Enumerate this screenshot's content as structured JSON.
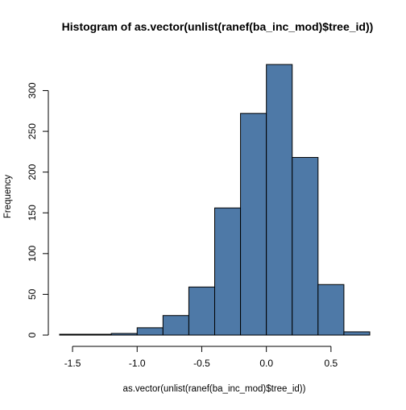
{
  "chart_data": {
    "type": "bar",
    "title": "Histogram of as.vector(unlist(ranef(ba_inc_mod)$tree_id))",
    "xlabel": "as.vector(unlist(ranef(ba_inc_mod)$tree_id))",
    "ylabel": "Frequency",
    "bin_edges": [
      -1.6,
      -1.4,
      -1.2,
      -1.0,
      -0.8,
      -0.6,
      -0.4,
      -0.2,
      0.0,
      0.2,
      0.4,
      0.6,
      0.8
    ],
    "values": [
      1,
      1,
      2,
      9,
      24,
      59,
      156,
      272,
      332,
      218,
      62,
      4
    ],
    "xlim": [
      -1.6,
      0.8
    ],
    "ylim": [
      0,
      340
    ],
    "x_ticks": [
      -1.5,
      -1.0,
      -0.5,
      0.0,
      0.5
    ],
    "x_tick_labels": [
      "-1.5",
      "-1.0",
      "-0.5",
      "0.0",
      "0.5"
    ],
    "y_ticks": [
      0,
      50,
      100,
      150,
      200,
      250,
      300
    ],
    "y_tick_labels": [
      "0",
      "50",
      "100",
      "150",
      "200",
      "250",
      "300"
    ],
    "bar_fill": "#4e79a7",
    "bar_stroke": "#000000",
    "grid": false,
    "legend": "none"
  }
}
